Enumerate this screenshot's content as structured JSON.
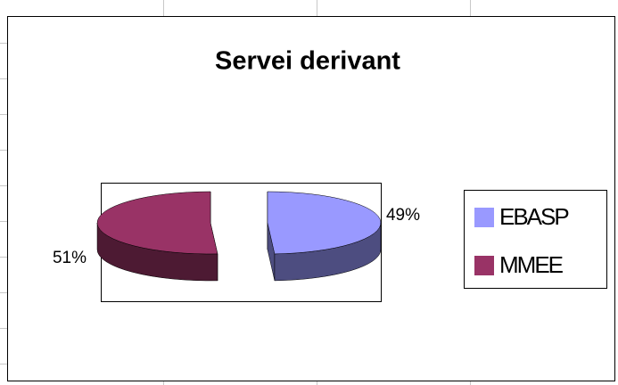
{
  "chart_data": {
    "type": "pie",
    "title": "Servei derivant",
    "categories": [
      "EBASP",
      "MMEE"
    ],
    "values": [
      49,
      51
    ],
    "value_labels": [
      "49%",
      "51%"
    ],
    "colors": [
      "#9999ff",
      "#993366"
    ],
    "side_colors": [
      "#4d4d80",
      "#4d1a33"
    ],
    "legend": "right"
  }
}
